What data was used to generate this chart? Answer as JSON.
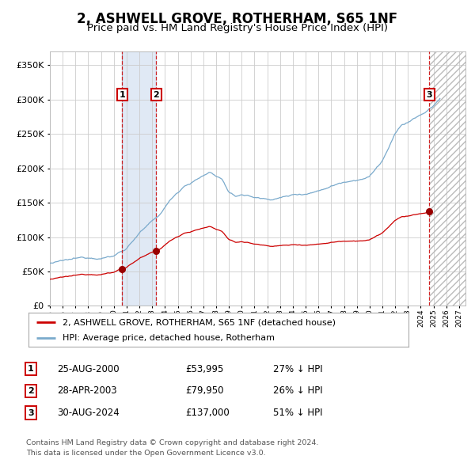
{
  "title": "2, ASHWELL GROVE, ROTHERHAM, S65 1NF",
  "subtitle": "Price paid vs. HM Land Registry's House Price Index (HPI)",
  "title_fontsize": 12,
  "subtitle_fontsize": 10,
  "background_color": "#ffffff",
  "plot_bg_color": "#ffffff",
  "grid_color": "#cccccc",
  "red_line_color": "#cc0000",
  "blue_line_color": "#7aaacc",
  "sale_marker_color": "#990000",
  "ylim": [
    0,
    370000
  ],
  "yticks": [
    0,
    50000,
    100000,
    150000,
    200000,
    250000,
    300000,
    350000
  ],
  "ytick_labels": [
    "£0",
    "£50K",
    "£100K",
    "£150K",
    "£200K",
    "£250K",
    "£300K",
    "£350K"
  ],
  "sales": [
    {
      "label": "1",
      "date_str": "25-AUG-2000",
      "price": 53995,
      "pct": "27%",
      "x_year": 2000.65
    },
    {
      "label": "2",
      "date_str": "28-APR-2003",
      "price": 79950,
      "pct": "26%",
      "x_year": 2003.32
    },
    {
      "label": "3",
      "date_str": "30-AUG-2024",
      "price": 137000,
      "pct": "51%",
      "x_year": 2024.66
    }
  ],
  "legend_line1": "2, ASHWELL GROVE, ROTHERHAM, S65 1NF (detached house)",
  "legend_line2": "HPI: Average price, detached house, Rotherham",
  "footer_line1": "Contains HM Land Registry data © Crown copyright and database right 2024.",
  "footer_line2": "This data is licensed under the Open Government Licence v3.0.",
  "xmin": 1995.0,
  "xmax": 2027.5,
  "shade_start": 2000.65,
  "shade_end": 2003.32,
  "future_start": 2024.66
}
